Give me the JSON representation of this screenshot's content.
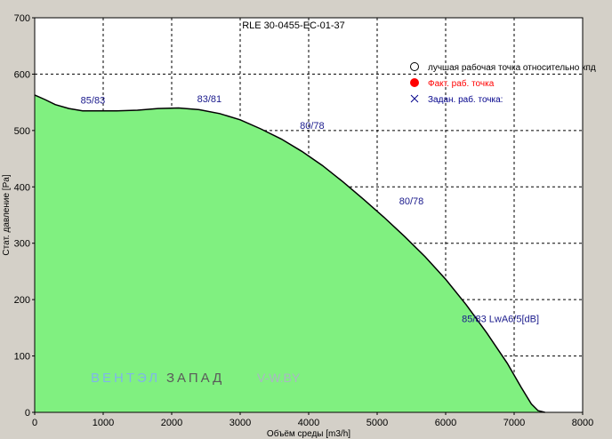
{
  "chart_data": {
    "type": "area",
    "title": "RLE 30-0455-EC-01-37",
    "xlabel": "Объём среды [m3/h]",
    "ylabel": "Стат. давление [Pa]",
    "xlim": [
      0,
      8000
    ],
    "ylim": [
      0,
      700
    ],
    "x_ticks": [
      "0",
      "1000",
      "2000",
      "3000",
      "4000",
      "5000",
      "6000",
      "7000",
      "8000"
    ],
    "y_ticks": [
      "0",
      "100",
      "200",
      "300",
      "400",
      "500",
      "600",
      "700"
    ],
    "grid": true,
    "fill_color": "#80f080",
    "line_color": "#000000",
    "curve": {
      "x": [
        0,
        150,
        300,
        500,
        700,
        900,
        1200,
        1500,
        1800,
        2100,
        2400,
        2700,
        3000,
        3300,
        3600,
        3900,
        4200,
        4500,
        4800,
        5100,
        5400,
        5700,
        6000,
        6300,
        6600,
        6900,
        7100,
        7250,
        7350,
        7450
      ],
      "y": [
        563,
        555,
        546,
        539,
        535,
        535,
        535,
        536,
        539,
        540,
        537,
        530,
        519,
        503,
        485,
        463,
        438,
        409,
        378,
        346,
        312,
        276,
        236,
        191,
        141,
        87,
        45,
        15,
        3,
        0
      ]
    },
    "annotations": [
      {
        "text": "85/83",
        "x": 850,
        "y": 548
      },
      {
        "text": "83/81",
        "x": 2550,
        "y": 550
      },
      {
        "text": "80/78",
        "x": 4050,
        "y": 503
      },
      {
        "text": "80/78",
        "x": 5500,
        "y": 369
      },
      {
        "text": "85/83 LwA6/5[dB]",
        "x": 6800,
        "y": 160
      }
    ],
    "legend": [
      {
        "symbol": "circle-open",
        "text": "лучшая рабочая точка относительно кпд",
        "color": "#000000"
      },
      {
        "symbol": "circle-filled",
        "text": "Факт.  раб. точка",
        "color": "#ff0000"
      },
      {
        "symbol": "cross",
        "text": "Задан. раб. точка:",
        "color": "#00008b"
      }
    ],
    "legend_position": "top-right",
    "watermark": {
      "part1": "ВЕНТЭЛ",
      "part2": "ЗАПАД",
      "part3": "V-W.BY"
    }
  }
}
